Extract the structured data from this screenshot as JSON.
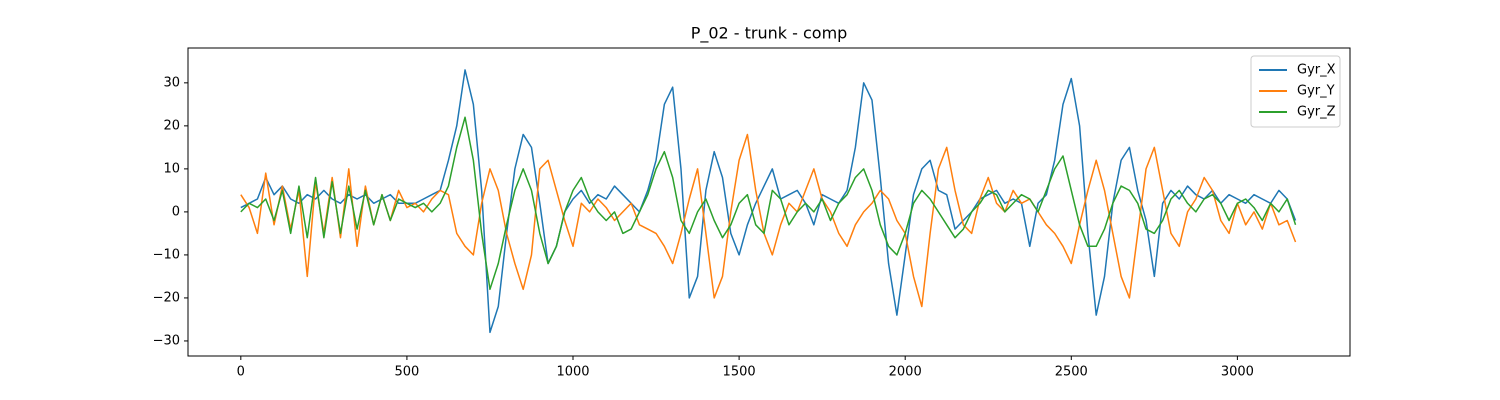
{
  "chart_data": {
    "type": "line",
    "title": "P_02 - trunk - comp",
    "x": [
      0,
      25,
      50,
      75,
      100,
      125,
      150,
      175,
      200,
      225,
      250,
      275,
      300,
      325,
      350,
      375,
      400,
      425,
      450,
      475,
      500,
      525,
      550,
      575,
      600,
      625,
      650,
      675,
      700,
      725,
      750,
      775,
      800,
      825,
      850,
      875,
      900,
      925,
      950,
      975,
      1000,
      1025,
      1050,
      1075,
      1100,
      1125,
      1150,
      1175,
      1200,
      1225,
      1250,
      1275,
      1300,
      1325,
      1350,
      1375,
      1400,
      1425,
      1450,
      1475,
      1500,
      1525,
      1550,
      1575,
      1600,
      1625,
      1650,
      1675,
      1700,
      1725,
      1750,
      1775,
      1800,
      1825,
      1850,
      1875,
      1900,
      1925,
      1950,
      1975,
      2000,
      2025,
      2050,
      2075,
      2100,
      2125,
      2150,
      2175,
      2200,
      2225,
      2250,
      2275,
      2300,
      2325,
      2350,
      2375,
      2400,
      2425,
      2450,
      2475,
      2500,
      2525,
      2550,
      2575,
      2600,
      2625,
      2650,
      2675,
      2700,
      2725,
      2750,
      2775,
      2800,
      2825,
      2850,
      2875,
      2900,
      2925,
      2950,
      2975,
      3000,
      3025,
      3050,
      3075,
      3100,
      3125,
      3150,
      3175
    ],
    "series": [
      {
        "name": "Gyr_X",
        "color": "#1f77b4",
        "values": [
          1,
          2,
          3,
          8,
          4,
          6,
          3,
          2,
          4,
          3,
          5,
          3,
          2,
          4,
          3,
          4,
          2,
          3,
          4,
          2,
          2,
          2,
          3,
          4,
          5,
          12,
          20,
          33,
          25,
          5,
          -28,
          -22,
          -5,
          10,
          18,
          15,
          2,
          -12,
          -8,
          0,
          3,
          5,
          2,
          4,
          3,
          6,
          4,
          2,
          0,
          5,
          12,
          25,
          29,
          10,
          -20,
          -15,
          5,
          14,
          8,
          -5,
          -10,
          -3,
          2,
          6,
          10,
          3,
          4,
          5,
          2,
          -3,
          4,
          3,
          2,
          5,
          15,
          30,
          26,
          8,
          -12,
          -24,
          -10,
          4,
          10,
          12,
          5,
          4,
          -4,
          -2,
          0,
          3,
          4,
          5,
          2,
          3,
          2,
          -8,
          2,
          4,
          12,
          25,
          31,
          20,
          -5,
          -24,
          -15,
          2,
          12,
          15,
          5,
          -2,
          -15,
          2,
          5,
          3,
          6,
          4,
          3,
          5,
          2,
          4,
          3,
          2,
          4,
          3,
          2,
          5,
          3,
          -2
        ]
      },
      {
        "name": "Gyr_Y",
        "color": "#ff7f0e",
        "values": [
          4,
          1,
          -5,
          9,
          -3,
          6,
          -4,
          5,
          -15,
          7,
          -5,
          8,
          -6,
          10,
          -8,
          6,
          -3,
          4,
          -2,
          5,
          1,
          2,
          0,
          3,
          5,
          4,
          -5,
          -8,
          -10,
          2,
          10,
          5,
          -5,
          -12,
          -18,
          -10,
          10,
          12,
          5,
          -2,
          -8,
          2,
          0,
          3,
          1,
          -2,
          0,
          2,
          -3,
          -4,
          -5,
          -8,
          -12,
          -5,
          3,
          10,
          -5,
          -20,
          -15,
          0,
          12,
          18,
          5,
          -5,
          -10,
          -3,
          2,
          0,
          5,
          10,
          3,
          0,
          -5,
          -8,
          -3,
          0,
          2,
          5,
          3,
          -2,
          -5,
          -15,
          -22,
          -5,
          10,
          15,
          5,
          -3,
          -5,
          3,
          8,
          2,
          0,
          5,
          2,
          3,
          0,
          -3,
          -5,
          -8,
          -12,
          -3,
          5,
          12,
          5,
          -5,
          -15,
          -20,
          -5,
          10,
          15,
          5,
          -5,
          -8,
          0,
          3,
          8,
          5,
          -2,
          -5,
          2,
          -3,
          0,
          -4,
          2,
          -3,
          -2,
          -7
        ]
      },
      {
        "name": "Gyr_Z",
        "color": "#2ca02c",
        "values": [
          0,
          2,
          1,
          3,
          -2,
          5,
          -5,
          6,
          -6,
          8,
          -6,
          7,
          -5,
          6,
          -4,
          5,
          -3,
          4,
          -2,
          3,
          2,
          1,
          2,
          0,
          2,
          6,
          15,
          22,
          12,
          -5,
          -18,
          -12,
          -3,
          5,
          10,
          5,
          -5,
          -12,
          -8,
          0,
          5,
          8,
          3,
          0,
          -2,
          0,
          -5,
          -4,
          0,
          4,
          10,
          14,
          8,
          -2,
          -5,
          0,
          3,
          -2,
          -6,
          -3,
          2,
          4,
          -3,
          -5,
          5,
          3,
          -3,
          0,
          2,
          0,
          3,
          -2,
          2,
          4,
          8,
          10,
          5,
          -3,
          -8,
          -10,
          -5,
          2,
          5,
          3,
          0,
          -3,
          -6,
          -4,
          0,
          2,
          5,
          4,
          0,
          2,
          4,
          3,
          0,
          5,
          10,
          13,
          5,
          -3,
          -8,
          -8,
          -4,
          2,
          6,
          5,
          2,
          -4,
          -5,
          -2,
          3,
          5,
          2,
          0,
          3,
          4,
          2,
          -2,
          2,
          3,
          1,
          -2,
          2,
          0,
          3,
          -3
        ]
      }
    ],
    "xlim": [
      -159,
      3339
    ],
    "ylim": [
      -33.5,
      38.1
    ],
    "xticks": [
      0,
      500,
      1000,
      1500,
      2000,
      2500,
      3000
    ],
    "yticks": [
      {
        "value": -30,
        "label": "−30"
      },
      {
        "value": -20,
        "label": "−20"
      },
      {
        "value": -10,
        "label": "−10"
      },
      0,
      10,
      20,
      30
    ],
    "legend": "upper right",
    "grid": false
  }
}
